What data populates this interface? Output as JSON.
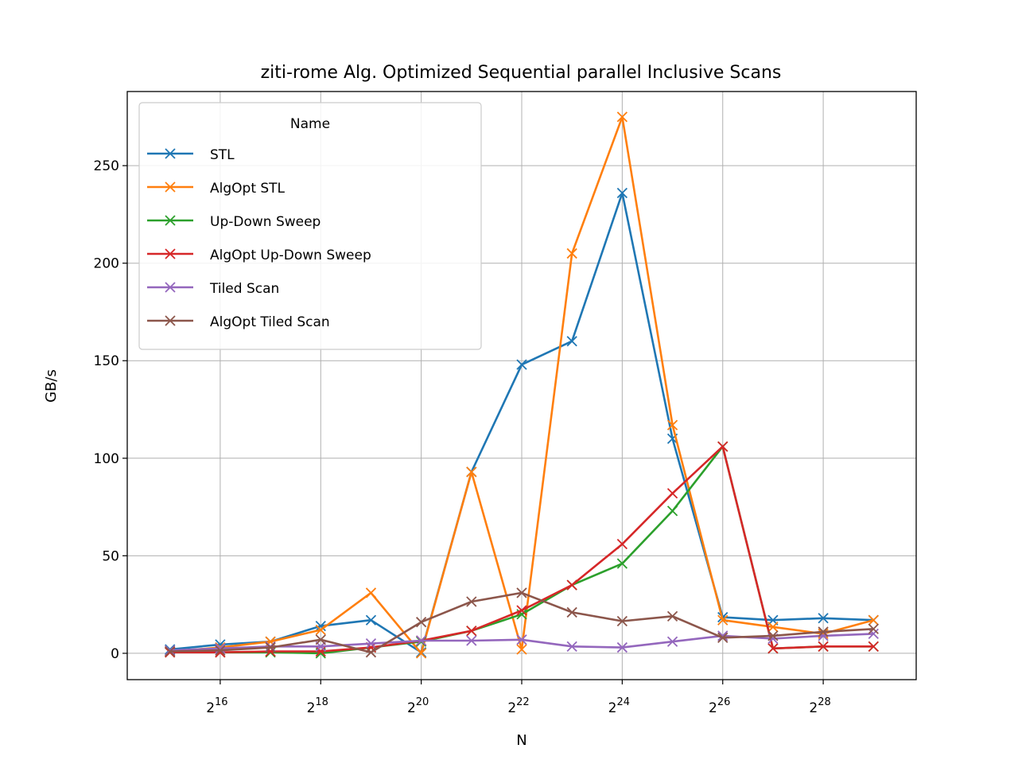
{
  "chart_data": {
    "type": "line",
    "title": "ziti-rome Alg. Optimized Sequential parallel Inclusive Scans",
    "xlabel": "N",
    "ylabel": "GB/s",
    "x_scale": "log2",
    "x_exponents": [
      15,
      16,
      17,
      18,
      19,
      20,
      21,
      22,
      23,
      24,
      25,
      26,
      27,
      28,
      29
    ],
    "x_tick_base": "2",
    "x_tick_exponents": [
      "16",
      "18",
      "20",
      "22",
      "24",
      "26",
      "28"
    ],
    "xlim_exponents": [
      14.15,
      29.85
    ],
    "ylim": [
      -13.5,
      288
    ],
    "y_ticks": [
      0,
      50,
      100,
      150,
      200,
      250
    ],
    "grid": true,
    "marker": "x",
    "legend": {
      "title": "Name",
      "placement": "upper-left"
    },
    "series": [
      {
        "name": "STL",
        "color": "#1f77b4",
        "values": [
          2,
          4.5,
          6,
          14,
          17,
          0.5,
          93,
          148,
          160,
          236,
          110,
          18.5,
          17,
          18,
          17
        ]
      },
      {
        "name": "AlgOpt STL",
        "color": "#ff7f0e",
        "values": [
          1,
          3,
          6,
          12,
          31,
          0,
          93,
          2,
          205,
          275,
          117,
          17,
          13.5,
          10,
          17
        ]
      },
      {
        "name": "Up-Down Sweep",
        "color": "#2ca02c",
        "values": [
          0.5,
          0.5,
          0.5,
          0,
          3,
          6,
          11.5,
          20,
          35,
          46,
          73,
          106,
          2.5,
          3.5,
          3.5
        ]
      },
      {
        "name": "AlgOpt Up-Down Sweep",
        "color": "#d62728",
        "values": [
          0.5,
          0.5,
          1,
          1,
          3,
          6.5,
          11.5,
          22,
          35,
          56,
          82,
          106,
          2.5,
          3.5,
          3.5
        ]
      },
      {
        "name": "Tiled Scan",
        "color": "#9467bd",
        "values": [
          1.5,
          2.5,
          3.5,
          3.5,
          5,
          6.5,
          6.5,
          7,
          3.5,
          3,
          6,
          9,
          7.5,
          9,
          10
        ]
      },
      {
        "name": "AlgOpt Tiled Scan",
        "color": "#8c564b",
        "values": [
          1,
          1.5,
          3,
          7,
          0.5,
          16,
          26.5,
          31,
          21,
          16.5,
          19,
          8,
          9,
          11,
          12.5
        ]
      }
    ]
  }
}
